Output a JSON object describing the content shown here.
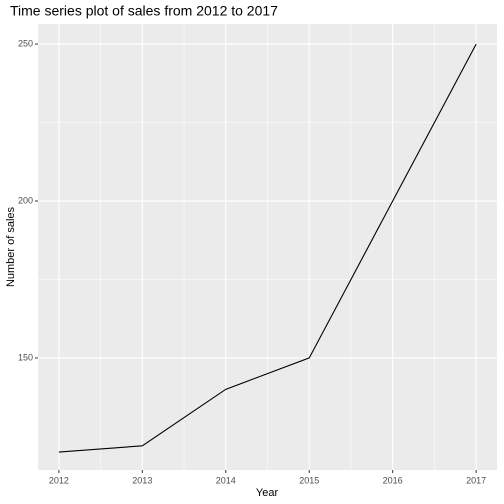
{
  "chart_data": {
    "type": "line",
    "title": "Time series plot of sales from 2012 to 2017",
    "x_label": "Year",
    "y_label": "Number of sales",
    "x": [
      2012,
      2013,
      2014,
      2015,
      2016,
      2017
    ],
    "values": [
      120,
      122,
      140,
      150,
      200,
      250
    ],
    "color": "#000000",
    "xlim": [
      2011.75,
      2017.25
    ],
    "xticks": [
      2012,
      2013,
      2014,
      2015,
      2016,
      2017
    ],
    "ylim": [
      114.3,
      256.4
    ],
    "yticks": [
      150,
      200,
      250
    ],
    "grid": true
  }
}
